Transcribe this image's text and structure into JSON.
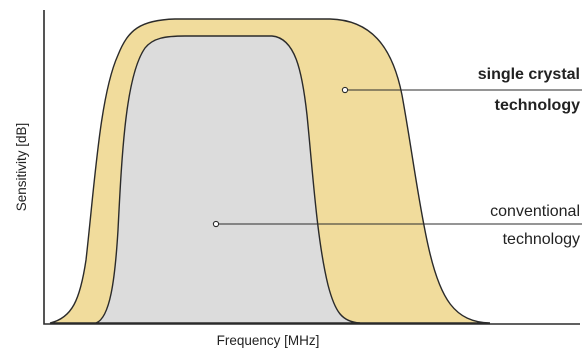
{
  "axes": {
    "x_label": "Frequency [MHz]",
    "y_label": "Sensitivity [dB]"
  },
  "curves": {
    "single_crystal": {
      "label_line1": "single crystal",
      "label_line2": "technology",
      "fill_color": "#f1dc9c"
    },
    "conventional": {
      "label_line1": "conventional",
      "label_line2": "technology",
      "fill_color": "#dcdcdc"
    }
  }
}
